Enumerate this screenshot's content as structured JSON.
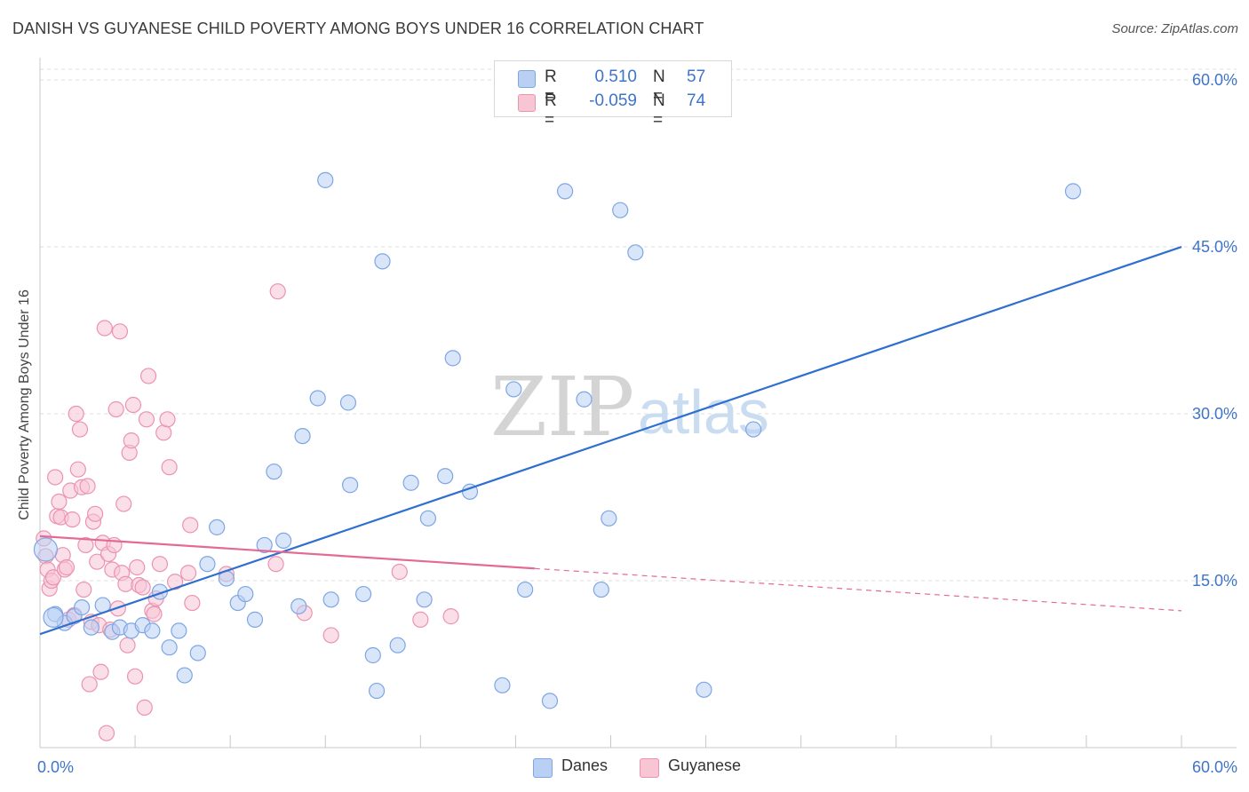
{
  "title": "DANISH VS GUYANESE CHILD POVERTY AMONG BOYS UNDER 16 CORRELATION CHART",
  "source": "Source: ZipAtlas.com",
  "watermark": {
    "zip": "ZIP",
    "atlas": "atlas"
  },
  "colors": {
    "danes_fill": "#b9d0f4",
    "danes_stroke": "#7da6e3",
    "danes_line": "#2f6fd0",
    "guyanese_fill": "#f8c5d5",
    "guyanese_stroke": "#eb93b0",
    "guyanese_line": "#e46a96",
    "grid": "#dedede",
    "axis": "#c8c8c8"
  },
  "legend": {
    "rows": [
      {
        "r_label": "R =",
        "r_value": "0.510",
        "n_label": "N =",
        "n_value": "57"
      },
      {
        "r_label": "R =",
        "r_value": "-0.059",
        "n_label": "N =",
        "n_value": "74"
      }
    ]
  },
  "bottom_legend": {
    "danes": "Danes",
    "guyanese": "Guyanese"
  },
  "chart_data": {
    "type": "scatter",
    "title": "DANISH VS GUYANESE CHILD POVERTY AMONG BOYS UNDER 16 CORRELATION CHART",
    "xlabel": "",
    "ylabel": "Child Poverty Among Boys Under 16",
    "xlim": [
      0,
      60
    ],
    "ylim": [
      0,
      62
    ],
    "x_tick_labels": [
      "0.0%",
      "60.0%"
    ],
    "y_ticks": [
      15,
      30,
      45,
      60
    ],
    "y_tick_labels": [
      "15.0%",
      "30.0%",
      "45.0%",
      "60.0%"
    ],
    "grid": "horizontal dashed",
    "series": [
      {
        "name": "Danes",
        "r": 0.51,
        "n": 57,
        "trend": {
          "x": [
            0,
            60
          ],
          "y": [
            10.2,
            45.0
          ],
          "dashed_from": null
        },
        "points": [
          [
            0.3,
            17.8
          ],
          [
            0.8,
            12.0
          ],
          [
            1.3,
            11.2
          ],
          [
            1.8,
            11.8
          ],
          [
            2.2,
            12.6
          ],
          [
            2.7,
            10.8
          ],
          [
            3.3,
            12.8
          ],
          [
            3.8,
            10.4
          ],
          [
            4.2,
            10.8
          ],
          [
            4.8,
            10.5
          ],
          [
            5.4,
            11.0
          ],
          [
            5.9,
            10.5
          ],
          [
            6.3,
            14.0
          ],
          [
            6.8,
            9.0
          ],
          [
            7.3,
            10.5
          ],
          [
            7.6,
            6.5
          ],
          [
            8.3,
            8.5
          ],
          [
            8.8,
            16.5
          ],
          [
            9.3,
            19.8
          ],
          [
            9.8,
            15.2
          ],
          [
            10.4,
            13.0
          ],
          [
            10.8,
            13.8
          ],
          [
            11.3,
            11.5
          ],
          [
            11.8,
            18.2
          ],
          [
            12.3,
            24.8
          ],
          [
            12.8,
            18.6
          ],
          [
            13.6,
            12.7
          ],
          [
            13.8,
            28.0
          ],
          [
            14.6,
            31.4
          ],
          [
            15.0,
            51.0
          ],
          [
            15.3,
            13.3
          ],
          [
            16.3,
            23.6
          ],
          [
            16.2,
            31.0
          ],
          [
            17.0,
            13.8
          ],
          [
            17.5,
            8.3
          ],
          [
            17.7,
            5.1
          ],
          [
            18.0,
            43.7
          ],
          [
            18.8,
            9.2
          ],
          [
            19.5,
            23.8
          ],
          [
            20.2,
            13.3
          ],
          [
            20.4,
            20.6
          ],
          [
            21.3,
            24.4
          ],
          [
            21.7,
            35.0
          ],
          [
            22.6,
            23.0
          ],
          [
            24.3,
            5.6
          ],
          [
            24.9,
            32.2
          ],
          [
            25.5,
            14.2
          ],
          [
            26.8,
            4.2
          ],
          [
            27.6,
            50.0
          ],
          [
            28.6,
            31.3
          ],
          [
            29.5,
            14.2
          ],
          [
            29.9,
            20.6
          ],
          [
            30.5,
            48.3
          ],
          [
            31.3,
            44.5
          ],
          [
            34.9,
            5.2
          ],
          [
            37.5,
            28.6
          ],
          [
            54.3,
            50.0
          ]
        ]
      },
      {
        "name": "Guyanese",
        "r": -0.059,
        "n": 74,
        "trend": {
          "x": [
            0,
            60
          ],
          "y": [
            19.0,
            12.3
          ],
          "dashed_from": 26.0
        },
        "points": [
          [
            0.2,
            18.8
          ],
          [
            0.3,
            17.2
          ],
          [
            0.4,
            16.0
          ],
          [
            0.5,
            14.3
          ],
          [
            0.6,
            15.0
          ],
          [
            0.7,
            15.3
          ],
          [
            0.8,
            24.3
          ],
          [
            0.9,
            20.8
          ],
          [
            1.0,
            22.1
          ],
          [
            1.1,
            20.7
          ],
          [
            1.2,
            17.3
          ],
          [
            1.3,
            16.0
          ],
          [
            1.4,
            16.2
          ],
          [
            1.5,
            11.5
          ],
          [
            1.6,
            23.1
          ],
          [
            1.7,
            20.5
          ],
          [
            1.8,
            11.9
          ],
          [
            1.9,
            30.0
          ],
          [
            2.0,
            25.0
          ],
          [
            2.1,
            28.6
          ],
          [
            2.2,
            23.4
          ],
          [
            2.3,
            14.2
          ],
          [
            2.4,
            18.2
          ],
          [
            2.5,
            23.5
          ],
          [
            2.6,
            5.7
          ],
          [
            2.7,
            11.3
          ],
          [
            2.8,
            20.3
          ],
          [
            2.9,
            21.0
          ],
          [
            3.0,
            16.7
          ],
          [
            3.1,
            11.0
          ],
          [
            3.2,
            6.8
          ],
          [
            3.3,
            18.4
          ],
          [
            3.4,
            37.7
          ],
          [
            3.5,
            1.3
          ],
          [
            3.6,
            17.4
          ],
          [
            3.7,
            10.6
          ],
          [
            3.8,
            16.0
          ],
          [
            3.9,
            18.2
          ],
          [
            4.0,
            30.4
          ],
          [
            4.1,
            12.5
          ],
          [
            4.2,
            37.4
          ],
          [
            4.3,
            15.7
          ],
          [
            4.4,
            21.9
          ],
          [
            4.5,
            14.7
          ],
          [
            4.6,
            9.2
          ],
          [
            4.7,
            26.5
          ],
          [
            4.8,
            27.6
          ],
          [
            4.9,
            30.8
          ],
          [
            5.0,
            6.4
          ],
          [
            5.1,
            16.2
          ],
          [
            5.2,
            14.6
          ],
          [
            5.4,
            14.4
          ],
          [
            5.5,
            3.6
          ],
          [
            5.6,
            29.5
          ],
          [
            5.7,
            33.4
          ],
          [
            5.9,
            12.3
          ],
          [
            6.0,
            12.0
          ],
          [
            6.1,
            13.4
          ],
          [
            6.3,
            16.5
          ],
          [
            6.5,
            28.3
          ],
          [
            6.7,
            29.5
          ],
          [
            6.8,
            25.2
          ],
          [
            7.1,
            14.9
          ],
          [
            7.8,
            15.7
          ],
          [
            7.9,
            20.0
          ],
          [
            8.0,
            13.0
          ],
          [
            9.8,
            15.6
          ],
          [
            12.4,
            16.5
          ],
          [
            12.5,
            41.0
          ],
          [
            13.9,
            12.1
          ],
          [
            15.3,
            10.1
          ],
          [
            18.9,
            15.8
          ],
          [
            20.0,
            11.5
          ],
          [
            21.6,
            11.8
          ]
        ]
      }
    ]
  }
}
